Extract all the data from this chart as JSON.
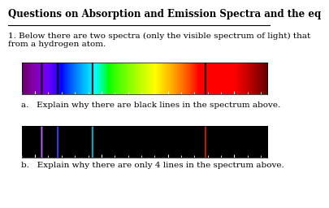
{
  "title": "Questions on Absorption and Emission Spectra and the eq",
  "question_text": "1. Below there are two spectra (only the visible spectrum of light) that\nfrom a hydrogen atom.",
  "sub_q_a": "a.   Explain why there are black lines in the spectrum above.",
  "sub_q_b": "b.   Explain why there are only 4 lines in the spectrum above.",
  "wl_min": 380,
  "wl_max": 750,
  "axis_ticks": [
    400,
    500,
    600,
    700
  ],
  "absorption_black_lines": [
    410,
    434,
    486,
    656
  ],
  "emission_lines": [
    {
      "wl": 410,
      "color": "#c060ff"
    },
    {
      "wl": 434,
      "color": "#4040ff"
    },
    {
      "wl": 486,
      "color": "#00bcd4"
    },
    {
      "wl": 656,
      "color": "#cc2200"
    }
  ],
  "bg_color": "#ffffff",
  "text_fontsize": 7.5,
  "title_fontsize": 8.5
}
